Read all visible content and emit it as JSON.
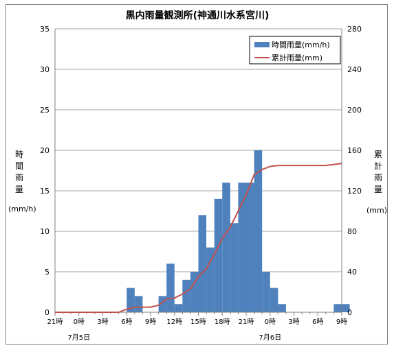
{
  "chart_data": {
    "type": "bar+line",
    "title": "黒内雨量観測所(神通川水系宮川)",
    "ylabel_left": "時間雨量",
    "ylabel_left_unit": "(mm/h)",
    "ylabel_right": "累計雨量",
    "ylabel_right_unit": "(mm)",
    "ylim_left": [
      0,
      35
    ],
    "ylim_right": [
      0,
      280
    ],
    "yticks_left": [
      "0",
      "5",
      "10",
      "15",
      "20",
      "25",
      "30",
      "35"
    ],
    "yticks_right": [
      "0",
      "40",
      "80",
      "120",
      "160",
      "200",
      "240",
      "280"
    ],
    "xtick_labels": [
      "21時",
      "0時",
      "3時",
      "6時",
      "9時",
      "12時",
      "15時",
      "18時",
      "21時",
      "0時",
      "3時",
      "6時",
      "9時"
    ],
    "date_labels": [
      {
        "label": "7月5日",
        "hour_index": 3
      },
      {
        "label": "7月6日",
        "hour_index": 27
      }
    ],
    "grid": true,
    "legend_position": "top-right",
    "hourly_series_name": "時間雨量(mm/h)",
    "cumulative_series_name": "累計雨量(mm)",
    "hourly_color": "#4f81bd",
    "cumulative_color": "#c0504d",
    "hourly": [
      0,
      0,
      0,
      0,
      0,
      0,
      0,
      0,
      0,
      3,
      2,
      0,
      0,
      2,
      6,
      1,
      4,
      5,
      12,
      8,
      14,
      16,
      11,
      16,
      16,
      20,
      5,
      3,
      1,
      0,
      0,
      0,
      0,
      0,
      0,
      1,
      1
    ],
    "cumulative": [
      0,
      0,
      0,
      0,
      0,
      0,
      0,
      0,
      0,
      3,
      5,
      5,
      5,
      7,
      13,
      14,
      18,
      23,
      35,
      43,
      57,
      73,
      84,
      100,
      116,
      136,
      141,
      144,
      145,
      145,
      145,
      145,
      145,
      145,
      145,
      146,
      147
    ]
  }
}
